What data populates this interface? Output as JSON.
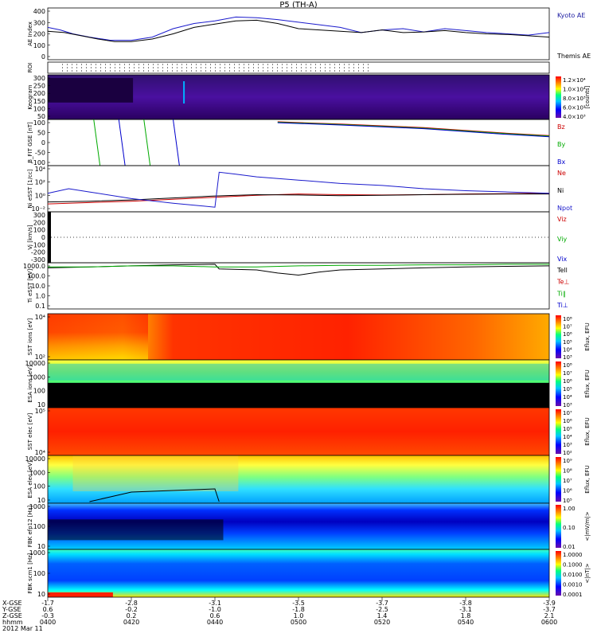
{
  "title": "P5 (TH-A)",
  "chart_data": {
    "type": "multi-panel timeseries / spectrogram",
    "time_ticks": [
      "0400",
      "0420",
      "0440",
      "0500",
      "0520",
      "0540",
      "0600"
    ],
    "footer": {
      "row_labels": [
        "X-GSE",
        "Y-GSE",
        "Z-GSE",
        "hhmm",
        "2012 Mar 11"
      ],
      "values": [
        [
          "-1.7",
          "-2.8",
          "-3.1",
          "-3.5",
          "-3.7",
          "-3.8",
          "-3.9"
        ],
        [
          "0.6",
          "-0.2",
          "-1.0",
          "-1.8",
          "-2.5",
          "-3.1",
          "-3.7"
        ],
        [
          "-0.3",
          "0.2",
          "0.6",
          "1.0",
          "1.4",
          "1.8",
          "2.1"
        ]
      ]
    },
    "panels": [
      {
        "id": "ae",
        "ylabel": "AE Index",
        "yticks": [
          "400",
          "300",
          "200",
          "100",
          "0"
        ],
        "ylim": [
          0,
          400
        ],
        "legend": [
          "Kyoto AE",
          "Themis AE"
        ],
        "legend_colors": [
          "#1a1aa0",
          "#000000"
        ],
        "series": [
          {
            "name": "Kyoto AE",
            "color": "#1a1acc",
            "x": [
              0,
              3,
              6,
              10,
              15,
              20,
              25,
              30,
              35,
              40,
              45,
              50,
              55,
              60,
              65,
              70,
              75,
              80,
              85,
              90,
              95,
              100,
              105,
              110,
              115,
              120
            ],
            "y": [
              250,
              230,
              200,
              175,
              150,
              150,
              175,
              240,
              280,
              300,
              330,
              325,
              310,
              290,
              270,
              250,
              210,
              230,
              240,
              215,
              240,
              225,
              210,
              200,
              190,
              210
            ]
          },
          {
            "name": "Themis AE",
            "color": "#000000",
            "x": [
              0,
              4,
              8,
              12,
              16,
              20,
              25,
              30,
              35,
              40,
              45,
              50,
              55,
              60,
              65,
              70,
              75,
              80,
              85,
              90,
              95,
              100,
              105,
              110,
              115,
              120
            ],
            "y": [
              220,
              210,
              185,
              160,
              140,
              140,
              160,
              200,
              250,
              275,
              300,
              305,
              280,
              240,
              230,
              220,
              210,
              230,
              210,
              215,
              225,
              210,
              200,
              195,
              185,
              175
            ]
          }
        ]
      },
      {
        "id": "roi",
        "ylabel": "ROI"
      },
      {
        "id": "keogram",
        "ylabel": "Keogram",
        "yticks": [
          "300",
          "250",
          "200",
          "150",
          "100",
          "50"
        ],
        "colorbar_label": "[counts]",
        "colorbar_ticks": [
          "1.2×10⁴",
          "1.0×10⁴",
          "8.0×10³",
          "6.0×10³",
          "4.0×10³"
        ]
      },
      {
        "id": "bfield",
        "ylabel": "B_FIT GSE [nT]",
        "yticks": [
          "100",
          "50",
          "0",
          "-50",
          "-100"
        ],
        "ylim": [
          -100,
          100
        ],
        "legend": [
          "Bz",
          "By",
          "Bx"
        ],
        "legend_colors": [
          "#cc0000",
          "#00aa00",
          "#0000cc"
        ],
        "series": [
          {
            "name": "Bz",
            "color": "#cc0000",
            "x": [
              55,
              70,
              90,
              110,
              120
            ],
            "y": [
              90,
              80,
              65,
              40,
              30
            ]
          },
          {
            "name": "By",
            "color": "#00aa00",
            "x": [
              55,
              70,
              90,
              110,
              120
            ],
            "y": [
              88,
              78,
              62,
              38,
              28
            ]
          },
          {
            "name": "Bx",
            "color": "#0000cc",
            "x": [
              55,
              70,
              90,
              110,
              120
            ],
            "y": [
              86,
              76,
              60,
              35,
              25
            ]
          }
        ]
      },
      {
        "id": "density",
        "ylabel": "Ni eSST [1/cc]",
        "yticks": [
          "10⁴",
          "10²",
          "10⁰",
          "10⁻²"
        ],
        "legend": [
          "Ne",
          "Ni",
          "Npot"
        ],
        "legend_colors": [
          "#cc0000",
          "#000000",
          "#1a1acc"
        ],
        "series": [
          {
            "name": "Ne",
            "color": "#cc0000",
            "x": [
              0,
              10,
              20,
              30,
              40,
              50,
              60,
              70,
              80,
              90,
              100,
              110,
              120
            ],
            "y": [
              -1.3,
              -1.1,
              -0.9,
              -0.6,
              -0.3,
              0.0,
              0.2,
              0.1,
              0.05,
              0.1,
              0.2,
              0.25,
              0.3
            ]
          },
          {
            "name": "Ni",
            "color": "#000000",
            "x": [
              0,
              10,
              20,
              30,
              40,
              50,
              60,
              70,
              80,
              90,
              100,
              110,
              120
            ],
            "y": [
              -1.0,
              -0.9,
              -0.7,
              -0.4,
              -0.1,
              0.1,
              0.05,
              -0.05,
              0.0,
              0.1,
              0.15,
              0.2,
              0.2
            ]
          },
          {
            "name": "Npot",
            "color": "#1a1acc",
            "x": [
              0,
              5,
              10,
              20,
              30,
              40,
              41,
              45,
              50,
              60,
              70,
              80,
              90,
              100,
              110,
              120
            ],
            "y": [
              0.3,
              1.0,
              0.5,
              -0.5,
              -1.2,
              -1.8,
              3.5,
              3.2,
              2.8,
              2.3,
              1.8,
              1.5,
              1.0,
              0.7,
              0.5,
              0.3
            ]
          }
        ]
      },
      {
        "id": "velocity",
        "ylabel": "Vi [km/s]",
        "yticks": [
          "300",
          "200",
          "100",
          "0",
          "-100",
          "-200",
          "-300"
        ],
        "ylim": [
          -300,
          300
        ],
        "legend": [
          "Viz",
          "Viy",
          "Vix"
        ],
        "legend_colors": [
          "#cc0000",
          "#00aa00",
          "#0000cc"
        ]
      },
      {
        "id": "temp",
        "ylabel": "Ti eSST [eV]",
        "yticks": [
          "1000.0",
          "100.0",
          "10.0",
          "1.0",
          "0.1"
        ],
        "legend": [
          "Tell",
          "Te⊥",
          "Ti∥",
          "Ti⊥"
        ],
        "legend_colors": [
          "#000000",
          "#cc0000",
          "#00aa00",
          "#0000cc"
        ],
        "series": [
          {
            "name": "Tell",
            "color": "#000000",
            "x": [
              0,
              10,
              20,
              30,
              40,
              41,
              50,
              55,
              60,
              65,
              70,
              80,
              90,
              100,
              110,
              120
            ],
            "y": [
              3.0,
              3.1,
              3.2,
              3.3,
              3.35,
              2.9,
              2.8,
              2.5,
              2.3,
              2.6,
              2.8,
              2.9,
              3.0,
              3.1,
              3.15,
              3.2
            ]
          },
          {
            "name": "Ti∥",
            "color": "#00aa00",
            "x": [
              0,
              10,
              20,
              30,
              40,
              50,
              60,
              70,
              80,
              90,
              100,
              110,
              120
            ],
            "y": [
              3.1,
              3.1,
              3.2,
              3.2,
              3.1,
              3.1,
              3.2,
              3.25,
              3.25,
              3.3,
              3.3,
              3.35,
              3.35
            ]
          }
        ]
      },
      {
        "id": "sst_ion",
        "ylabel": "SST ions [eV]",
        "yticks": [
          "10⁴",
          "10²"
        ],
        "colorbar_label": "Eflux, EFU",
        "colorbar_ticks": [
          "10⁸",
          "10⁷",
          "10⁶",
          "10⁵",
          "10⁴",
          "10³"
        ]
      },
      {
        "id": "esa_ion",
        "ylabel": "ESA ions [eV]",
        "yticks": [
          "10000",
          "1000",
          "100",
          "10"
        ],
        "colorbar_label": "Eflux, EFU",
        "colorbar_ticks": [
          "10⁸",
          "10⁷",
          "10⁶",
          "10⁵",
          "10⁴",
          "10³"
        ]
      },
      {
        "id": "sst_elec",
        "ylabel": "SST elec [eV]",
        "yticks": [
          "10⁵",
          "10⁴"
        ],
        "colorbar_label": "Eflux, EFU",
        "colorbar_ticks": [
          "10⁷",
          "10⁶",
          "10⁵",
          "10⁴",
          "10³",
          "10²"
        ]
      },
      {
        "id": "esa_elec",
        "ylabel": "ESA elec [eV]",
        "yticks": [
          "10000",
          "1000",
          "100",
          "10"
        ],
        "colorbar_label": "Eflux, EFU",
        "colorbar_ticks": [
          "10⁹",
          "10⁸",
          "10⁷",
          "10⁶",
          "10⁵"
        ]
      },
      {
        "id": "fbk_e",
        "ylabel": "FBK efp12 [Hz]",
        "yticks": [
          "1000",
          "100",
          "10"
        ],
        "colorbar_label": "<|mV/m|>",
        "colorbar_ticks": [
          "1.00",
          "0.10",
          "0.01"
        ]
      },
      {
        "id": "fbk_b",
        "ylabel": "FBK scm1 [Hz]",
        "yticks": [
          "1000",
          "100",
          "10"
        ],
        "colorbar_label": "<|nT|>",
        "colorbar_ticks": [
          "1.0000",
          "0.1000",
          "0.0100",
          "0.0010",
          "0.0001"
        ]
      }
    ]
  }
}
